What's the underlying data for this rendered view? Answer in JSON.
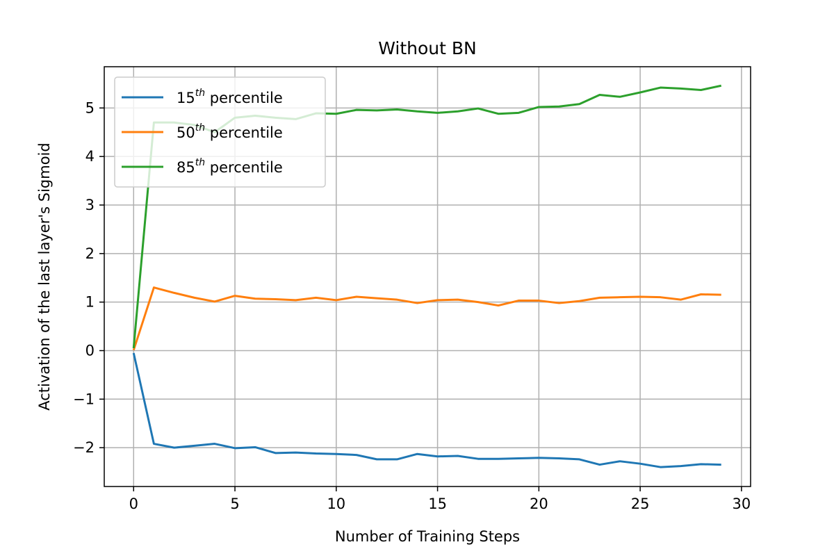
{
  "chart_data": {
    "type": "line",
    "title": "Without BN",
    "xlabel": "Number of Training Steps",
    "ylabel": "Activation of the last layer's Sigmoid",
    "xlim": [
      -1.45,
      30.45
    ],
    "ylim": [
      -2.8,
      5.85
    ],
    "xticks": [
      0,
      5,
      10,
      15,
      20,
      25,
      30
    ],
    "xtick_labels": [
      "0",
      "5",
      "10",
      "15",
      "20",
      "25",
      "30"
    ],
    "yticks": [
      -2,
      -1,
      0,
      1,
      2,
      3,
      4,
      5
    ],
    "ytick_labels": [
      "−2",
      "−1",
      "0",
      "1",
      "2",
      "3",
      "4",
      "5"
    ],
    "grid": true,
    "legend_position": "top-left",
    "x": [
      0,
      1,
      2,
      3,
      4,
      5,
      6,
      7,
      8,
      9,
      10,
      11,
      12,
      13,
      14,
      15,
      16,
      17,
      18,
      19,
      20,
      21,
      22,
      23,
      24,
      25,
      26,
      27,
      28,
      29
    ],
    "series": [
      {
        "name": "15",
        "name_sup": "th",
        "name_suffix": " percentile",
        "color": "#1f77b4",
        "values": [
          -0.05,
          -1.92,
          -2.0,
          -1.96,
          -1.92,
          -2.01,
          -1.99,
          -2.11,
          -2.1,
          -2.12,
          -2.13,
          -2.15,
          -2.24,
          -2.24,
          -2.13,
          -2.18,
          -2.17,
          -2.23,
          -2.23,
          -2.22,
          -2.21,
          -2.22,
          -2.24,
          -2.35,
          -2.28,
          -2.33,
          -2.4,
          -2.38,
          -2.34,
          -2.35
        ]
      },
      {
        "name": "50",
        "name_sup": "th",
        "name_suffix": " percentile",
        "color": "#ff7f0e",
        "values": [
          0.01,
          1.3,
          1.19,
          1.09,
          1.01,
          1.13,
          1.07,
          1.06,
          1.04,
          1.09,
          1.04,
          1.11,
          1.08,
          1.05,
          0.98,
          1.04,
          1.05,
          1.0,
          0.93,
          1.03,
          1.03,
          0.98,
          1.02,
          1.09,
          1.1,
          1.11,
          1.1,
          1.05,
          1.16,
          1.15
        ]
      },
      {
        "name": "85",
        "name_sup": "th",
        "name_suffix": " percentile",
        "color": "#2ca02c",
        "values": [
          0.05,
          4.7,
          4.7,
          4.65,
          4.5,
          4.8,
          4.84,
          4.8,
          4.77,
          4.89,
          4.88,
          4.96,
          4.95,
          4.97,
          4.93,
          4.9,
          4.93,
          4.99,
          4.88,
          4.9,
          5.02,
          5.03,
          5.08,
          5.27,
          5.23,
          5.32,
          5.42,
          5.4,
          5.37,
          5.46
        ]
      }
    ]
  }
}
